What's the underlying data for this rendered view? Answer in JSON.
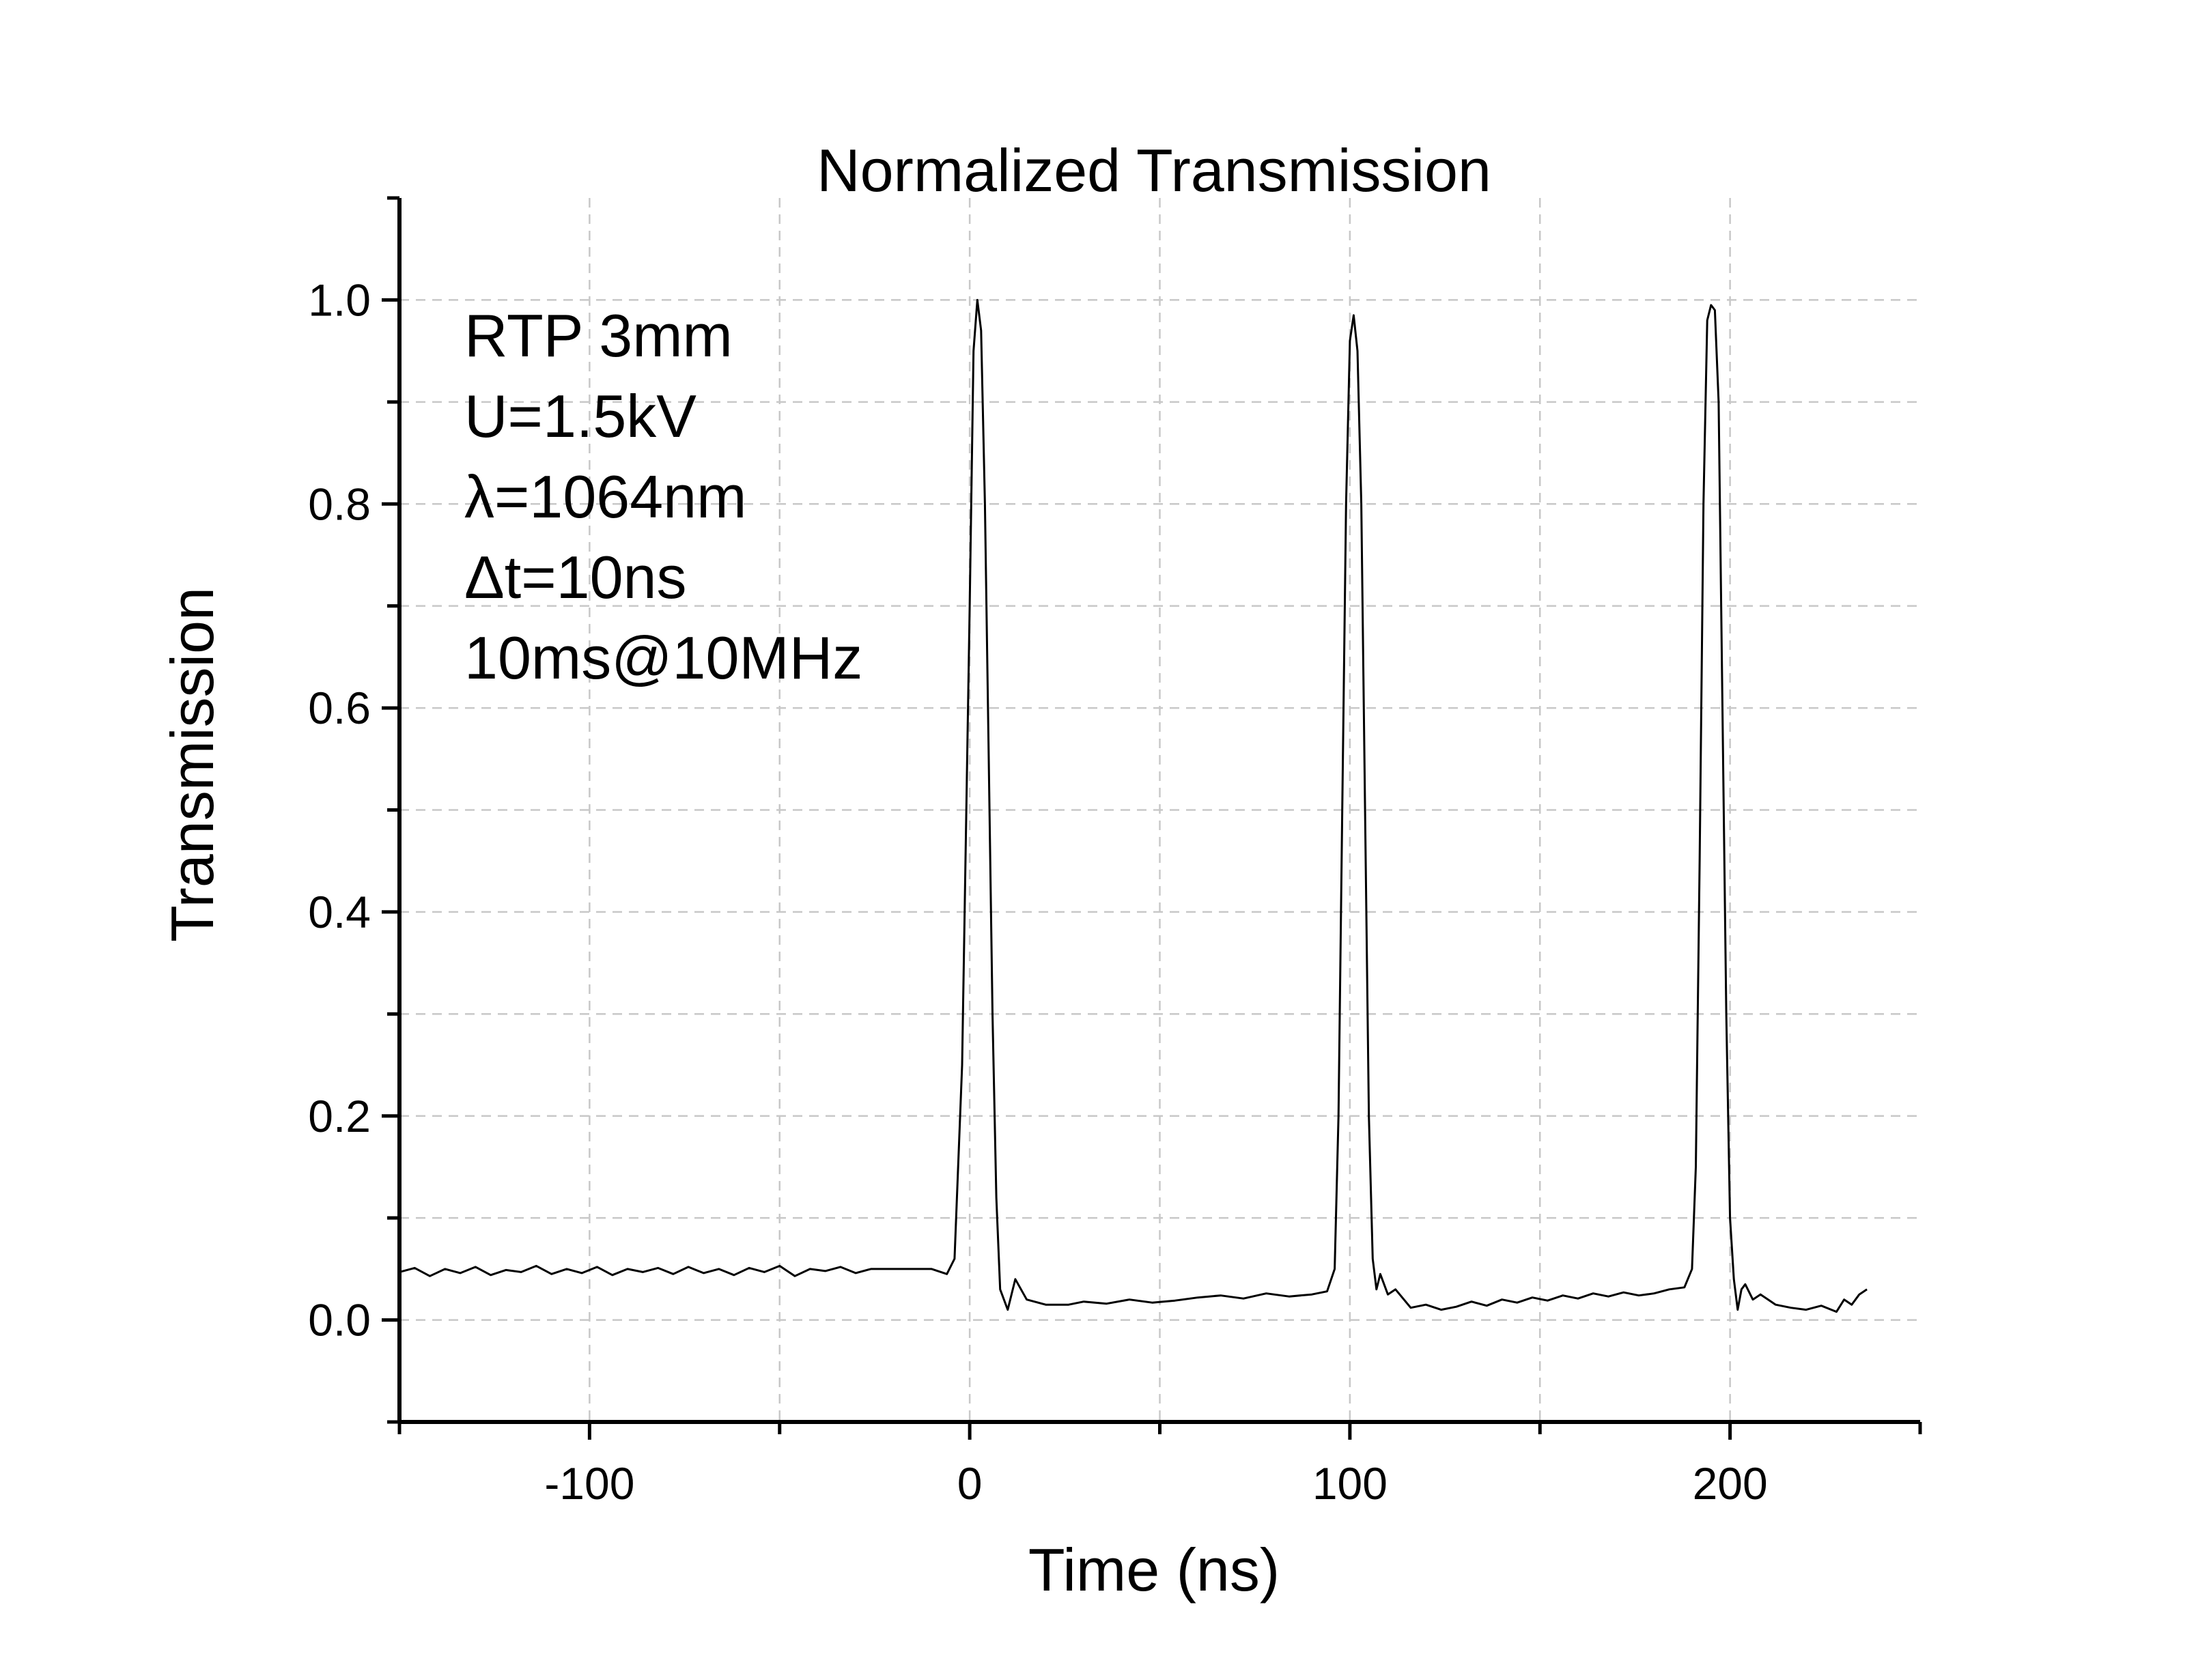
{
  "chart_data": {
    "type": "line",
    "title": "Normalized Transmission",
    "xlabel": "Time (ns)",
    "ylabel": "Transmission",
    "xlim": [
      -150,
      250
    ],
    "ylim": [
      -0.1,
      1.1
    ],
    "x_ticks": [
      -100,
      0,
      100,
      200
    ],
    "x_tick_labels": [
      "-100",
      "0",
      "100",
      "200"
    ],
    "y_ticks": [
      0.0,
      0.2,
      0.4,
      0.6,
      0.8,
      1.0
    ],
    "y_tick_labels": [
      "0.0",
      "0.2",
      "0.4",
      "0.6",
      "0.8",
      "1.0"
    ],
    "grid": true,
    "annotations": [
      "RTP 3mm",
      "U=1.5kV",
      "λ=1064nm",
      "Δt=10ns",
      "10ms@10MHz"
    ],
    "series": [
      {
        "x": [
          -150,
          -146,
          -142,
          -138,
          -134,
          -130,
          -126,
          -122,
          -118,
          -114,
          -110,
          -106,
          -102,
          -98,
          -94,
          -90,
          -86,
          -82,
          -78,
          -74,
          -70,
          -66,
          -62,
          -58,
          -54,
          -50,
          -46,
          -42,
          -38,
          -34,
          -30,
          -26,
          -22,
          -18,
          -14,
          -10,
          -6,
          -4,
          -2,
          0,
          1,
          2,
          3,
          4,
          5,
          6,
          7,
          8,
          10,
          12,
          15,
          20,
          26,
          30,
          36,
          42,
          48,
          54,
          60,
          66,
          72,
          78,
          84,
          90,
          94,
          96,
          97,
          98,
          99,
          100,
          101,
          102,
          103,
          104,
          105,
          106,
          107,
          108,
          110,
          112,
          116,
          120,
          124,
          128,
          132,
          136,
          140,
          144,
          148,
          152,
          156,
          160,
          164,
          168,
          172,
          176,
          180,
          184,
          188,
          190,
          191,
          192,
          193,
          194,
          195,
          196,
          197,
          198,
          199,
          200,
          201,
          202,
          203,
          204,
          206,
          208,
          212,
          216,
          220,
          224,
          228,
          230,
          232,
          234,
          236
        ],
        "y": [
          0.047,
          0.051,
          0.043,
          0.05,
          0.046,
          0.052,
          0.044,
          0.049,
          0.047,
          0.053,
          0.045,
          0.05,
          0.046,
          0.052,
          0.044,
          0.05,
          0.047,
          0.051,
          0.045,
          0.052,
          0.046,
          0.05,
          0.044,
          0.051,
          0.047,
          0.053,
          0.043,
          0.05,
          0.048,
          0.052,
          0.046,
          0.05,
          0.05,
          0.05,
          0.05,
          0.05,
          0.045,
          0.06,
          0.25,
          0.7,
          0.95,
          1.0,
          0.97,
          0.8,
          0.55,
          0.3,
          0.12,
          0.03,
          0.01,
          0.04,
          0.02,
          0.015,
          0.015,
          0.018,
          0.016,
          0.02,
          0.017,
          0.019,
          0.022,
          0.024,
          0.021,
          0.026,
          0.023,
          0.025,
          0.028,
          0.05,
          0.2,
          0.5,
          0.8,
          0.96,
          0.985,
          0.95,
          0.8,
          0.5,
          0.2,
          0.06,
          0.03,
          0.045,
          0.025,
          0.03,
          0.012,
          0.015,
          0.01,
          0.013,
          0.018,
          0.014,
          0.02,
          0.017,
          0.022,
          0.019,
          0.024,
          0.021,
          0.026,
          0.023,
          0.027,
          0.024,
          0.026,
          0.03,
          0.032,
          0.05,
          0.15,
          0.45,
          0.8,
          0.98,
          0.995,
          0.99,
          0.9,
          0.6,
          0.3,
          0.1,
          0.04,
          0.01,
          0.03,
          0.035,
          0.02,
          0.025,
          0.015,
          0.012,
          0.01,
          0.014,
          0.008,
          0.02,
          0.015,
          0.025,
          0.03
        ]
      }
    ]
  }
}
